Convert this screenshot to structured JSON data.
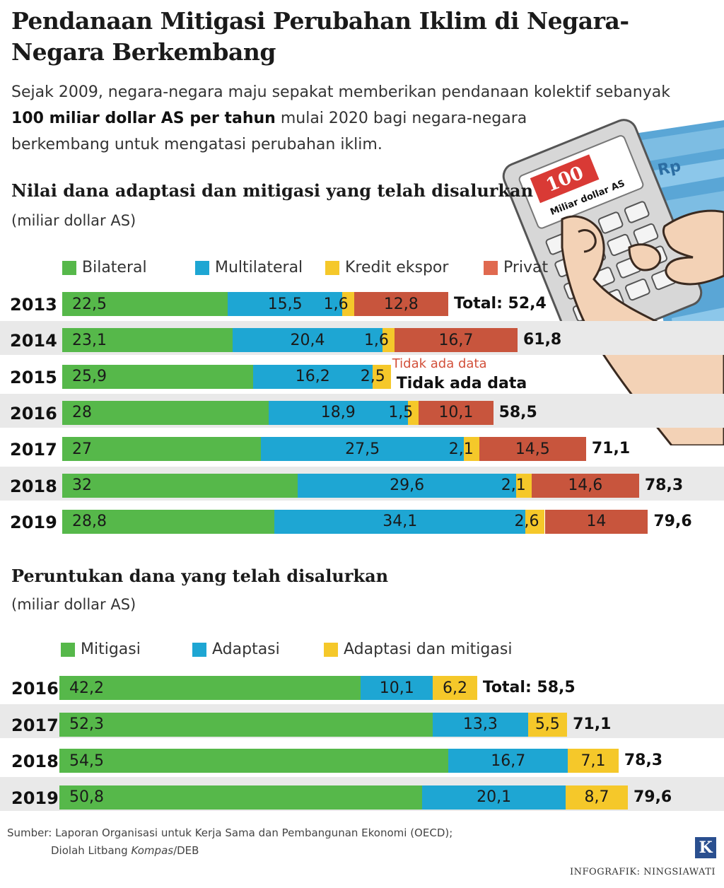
{
  "title": "Pendanaan Mitigasi Perubahan Iklim di Negara-Negara Berkembang",
  "intro": {
    "line1": "Sejak 2009, negara-negara maju sepakat memberikan pendanaan kolektif sebanyak",
    "bold": "100 miliar dollar AS per tahun",
    "rest2": " mulai 2020 bagi negara-negara",
    "line3": "berkembang untuk mengatasi perubahan iklim."
  },
  "illustration": {
    "display_number": "100",
    "display_text": "Miliar dollar AS",
    "money_text": "Rp"
  },
  "colors": {
    "green": "#56b84a",
    "blue": "#1ea6d3",
    "yellow": "#f5c82a",
    "red": "#c8553d",
    "red_legend": "#e0694f",
    "band": "#e9e9e9",
    "nodata_red": "#d2503a"
  },
  "source": {
    "line1": "Sumber: Laporan Organisasi untuk Kerja Sama dan Pembangunan Ekonomi (OECD);",
    "line2_prefix": "Diolah Litbang ",
    "line2_italic": "Kompas",
    "line2_suffix": "/DEB"
  },
  "credit": "INFOGRAFIK: NINGSIAWATI",
  "logo_letter": "K",
  "chart_data": [
    {
      "type": "bar",
      "orientation": "horizontal",
      "stacked": true,
      "title": "Nilai dana adaptasi dan mitigasi yang telah disalurkan",
      "unit": "(miliar dollar AS)",
      "categories": [
        "2013",
        "2014",
        "2015",
        "2016",
        "2017",
        "2018",
        "2019"
      ],
      "series": [
        {
          "name": "Bilateral",
          "color": "#56b84a",
          "values": [
            22.5,
            23.1,
            25.9,
            28,
            27,
            32,
            28.8
          ],
          "labels": [
            "22,5",
            "23,1",
            "25,9",
            "28",
            "27",
            "32",
            "28,8"
          ]
        },
        {
          "name": "Multilateral",
          "color": "#1ea6d3",
          "values": [
            15.5,
            20.4,
            16.2,
            18.9,
            27.5,
            29.6,
            34.1
          ],
          "labels": [
            "15,5",
            "20,4",
            "16,2",
            "18,9",
            "27,5",
            "29,6",
            "34,1"
          ]
        },
        {
          "name": "Kredit ekspor",
          "color": "#f5c82a",
          "values": [
            1.6,
            1.6,
            2.5,
            1.5,
            2.1,
            2.1,
            2.6
          ],
          "labels": [
            "1,6",
            "1,6",
            "2,5",
            "1,5",
            "2,1",
            "2,1",
            "2,6"
          ]
        },
        {
          "name": "Privat",
          "color": "#c8553d",
          "values": [
            12.8,
            16.7,
            null,
            10.1,
            14.5,
            14.6,
            14
          ],
          "labels": [
            "12,8",
            "16,7",
            "Tidak ada data",
            "10,1",
            "14,5",
            "14,6",
            "14"
          ]
        }
      ],
      "totals": [
        "Total: 52,4",
        "61,8",
        "Tidak ada data",
        "58,5",
        "71,1",
        "78,3",
        "79,6"
      ]
    },
    {
      "type": "bar",
      "orientation": "horizontal",
      "stacked": true,
      "title": "Peruntukan dana yang telah disalurkan",
      "unit": "(miliar dollar AS)",
      "categories": [
        "2016",
        "2017",
        "2018",
        "2019"
      ],
      "series": [
        {
          "name": "Mitigasi",
          "color": "#56b84a",
          "values": [
            42.2,
            52.3,
            54.5,
            50.8
          ],
          "labels": [
            "42,2",
            "52,3",
            "54,5",
            "50,8"
          ]
        },
        {
          "name": "Adaptasi",
          "color": "#1ea6d3",
          "values": [
            10.1,
            13.3,
            16.7,
            20.1
          ],
          "labels": [
            "10,1",
            "13,3",
            "16,7",
            "20,1"
          ]
        },
        {
          "name": "Adaptasi dan mitigasi",
          "color": "#f5c82a",
          "values": [
            6.2,
            5.5,
            7.1,
            8.7
          ],
          "labels": [
            "6,2",
            "5,5",
            "7,1",
            "8,7"
          ]
        }
      ],
      "totals": [
        "Total: 58,5",
        "71,1",
        "78,3",
        "79,6"
      ]
    }
  ]
}
